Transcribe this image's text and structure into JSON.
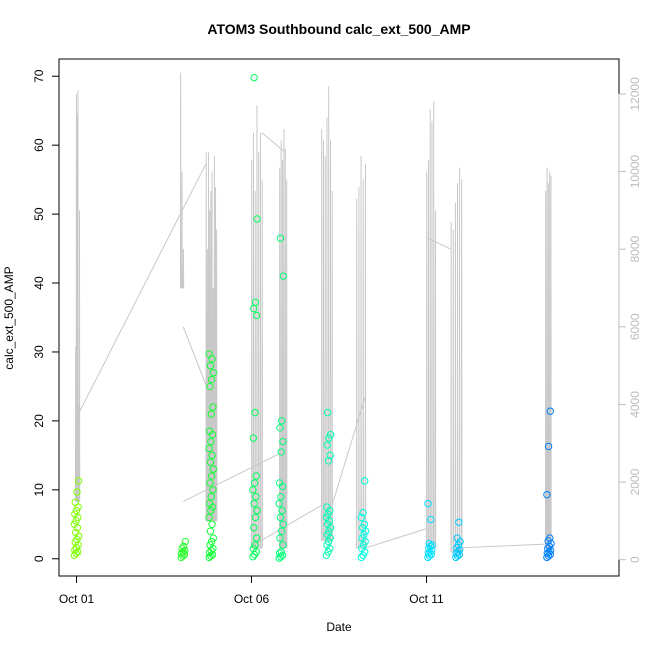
{
  "chart_data": {
    "type": "scatter",
    "title": "ATOM3 Southbound calc_ext_500_AMP",
    "xlabel": "Date",
    "ylabel": "calc_ext_500_AMP",
    "x_ticks": [
      "Oct 01",
      "Oct 06",
      "Oct 11"
    ],
    "x_tick_days": [
      1,
      6,
      11
    ],
    "xlim": [
      0.5,
      16.5
    ],
    "ylim": [
      -2.5,
      72.5
    ],
    "y_ticks": [
      0,
      10,
      20,
      30,
      40,
      50,
      60,
      70
    ],
    "y2lim": [
      -420,
      12900
    ],
    "y2_ticks": [
      0,
      2000,
      4000,
      6000,
      8000,
      10000,
      12000
    ],
    "grid": false,
    "legend": "none",
    "colors": {
      "axis": "#000000",
      "line_series": "#c8c8c8",
      "right_axis": "#bdbdbd",
      "point_gradient": [
        "#80ff00",
        "#00ff40",
        "#00ffff",
        "#0080ff"
      ]
    },
    "series": [
      {
        "kind": "points",
        "axis": "left",
        "clusters": [
          {
            "x": 1.0,
            "values": [
              0.5,
              0.8,
              1.0,
              1.3,
              1.6,
              2.0,
              2.4,
              2.8,
              3.3,
              3.8,
              4.5,
              5.0,
              5.5,
              6.0,
              6.5,
              7.0,
              7.5,
              8.2,
              9.7,
              11.3
            ]
          },
          {
            "x": 4.05,
            "values": [
              0.2,
              0.4,
              0.6,
              0.8,
              1.0,
              1.2,
              1.5,
              1.8,
              2.5
            ]
          },
          {
            "x": 4.85,
            "values": [
              0.2,
              0.4,
              0.6,
              0.9,
              1.2,
              1.5,
              2.0,
              2.5,
              3.0,
              4.0,
              5.0,
              6.0,
              7.0,
              7.5,
              8.0,
              9.0,
              10.0,
              11.0,
              12.0,
              13.0,
              14.0,
              15.0,
              16.0,
              17.0,
              18.0,
              18.5,
              21.0,
              22.0,
              25.0,
              26.0,
              27.0,
              28.0,
              29.0,
              29.7
            ]
          },
          {
            "x": 6.1,
            "values": [
              0.3,
              0.6,
              1.0,
              1.5,
              2.0,
              3.0,
              4.5,
              6.0,
              7.0,
              8.0,
              9.0,
              10.0,
              11.0,
              12.0,
              17.5,
              21.2,
              35.3,
              36.3,
              37.2,
              49.3,
              69.8
            ]
          },
          {
            "x": 6.85,
            "values": [
              0.1,
              0.3,
              0.5,
              0.8,
              1.0,
              2.0,
              3.0,
              4.0,
              5.0,
              6.0,
              7.0,
              8.0,
              9.0,
              10.5,
              11.0,
              15.5,
              17.0,
              19.0,
              20.0,
              41.0,
              46.5
            ]
          },
          {
            "x": 8.2,
            "values": [
              0.5,
              1.0,
              1.5,
              2.0,
              2.5,
              3.0,
              3.5,
              4.0,
              4.5,
              5.0,
              5.5,
              6.0,
              6.5,
              7.0,
              7.5,
              14.2,
              15.0,
              16.5,
              17.5,
              18.0,
              21.2
            ]
          },
          {
            "x": 9.2,
            "values": [
              0.2,
              0.5,
              1.0,
              1.5,
              2.0,
              2.5,
              3.0,
              3.5,
              4.0,
              4.5,
              5.0,
              6.0,
              6.7,
              11.3
            ]
          },
          {
            "x": 11.1,
            "values": [
              0.2,
              0.4,
              0.6,
              0.8,
              1.0,
              1.2,
              1.5,
              1.8,
              2.0,
              2.2,
              5.7,
              8.0
            ]
          },
          {
            "x": 11.9,
            "values": [
              0.2,
              0.4,
              0.6,
              0.8,
              1.0,
              1.3,
              1.6,
              2.0,
              2.5,
              3.0,
              5.3
            ]
          },
          {
            "x": 14.5,
            "values": [
              0.2,
              0.4,
              0.6,
              0.8,
              1.0,
              1.2,
              1.5,
              1.8,
              2.2,
              2.6,
              3.0,
              9.3,
              16.3,
              21.4
            ]
          }
        ]
      },
      {
        "kind": "line",
        "axis": "right",
        "spike_groups": [
          {
            "x_start": 0.97,
            "x_end": 1.08,
            "base": 1500,
            "peaks": [
              5500,
              12000,
              11500,
              12100,
              4000,
              9000
            ]
          },
          {
            "x_start": 3.97,
            "x_end": 4.05,
            "base": 7000,
            "peaks": [
              12550,
              10000,
              8000
            ]
          },
          {
            "x_start": 4.7,
            "x_end": 5.0,
            "base": 1000,
            "peaks": [
              10500,
              8000,
              10500,
              9000,
              9500,
              10000,
              7000,
              10400,
              9600,
              8500
            ]
          },
          {
            "x_start": 6.0,
            "x_end": 6.3,
            "base": 300,
            "peaks": [
              10300,
              11000,
              9500,
              11700,
              10500,
              11000,
              9800
            ]
          },
          {
            "x_start": 6.8,
            "x_end": 7.0,
            "base": 300,
            "peaks": [
              10100,
              10800,
              10300,
              11100,
              10600,
              9800
            ]
          },
          {
            "x_start": 8.0,
            "x_end": 8.3,
            "base": 500,
            "peaks": [
              11100,
              10800,
              10400,
              11400,
              12200,
              10800,
              9500
            ]
          },
          {
            "x_start": 9.0,
            "x_end": 9.25,
            "base": 300,
            "peaks": [
              9300,
              9600,
              10400,
              9800,
              10200
            ]
          },
          {
            "x_start": 11.0,
            "x_end": 11.25,
            "base": 300,
            "peaks": [
              10000,
              10300,
              11600,
              11300,
              11800,
              9000
            ]
          },
          {
            "x_start": 11.7,
            "x_end": 12.0,
            "base": 200,
            "peaks": [
              8700,
              8500,
              9200,
              9700,
              10100,
              9800
            ]
          },
          {
            "x_start": 14.4,
            "x_end": 14.55,
            "base": 300,
            "peaks": [
              9500,
              10100,
              9700,
              10000,
              9900
            ]
          }
        ],
        "connectors": [
          {
            "x": [
              1.08,
              4.7
            ],
            "y": [
              3800,
              10200
            ]
          },
          {
            "x": [
              4.05,
              4.7
            ],
            "y": [
              6000,
              4500
            ]
          },
          {
            "x": [
              4.05,
              6.95
            ],
            "y": [
              1500,
              2800
            ]
          },
          {
            "x": [
              6.3,
              6.95
            ],
            "y": [
              11000,
              10500
            ]
          },
          {
            "x": [
              6.0,
              8.0
            ],
            "y": [
              350,
              1400
            ]
          },
          {
            "x": [
              8.3,
              9.25
            ],
            "y": [
              1400,
              4200
            ]
          },
          {
            "x": [
              9.25,
              11.0
            ],
            "y": [
              300,
              800
            ]
          },
          {
            "x": [
              11.0,
              11.7
            ],
            "y": [
              8300,
              8000
            ]
          },
          {
            "x": [
              11.8,
              14.4
            ],
            "y": [
              300,
              400
            ]
          }
        ]
      }
    ]
  }
}
